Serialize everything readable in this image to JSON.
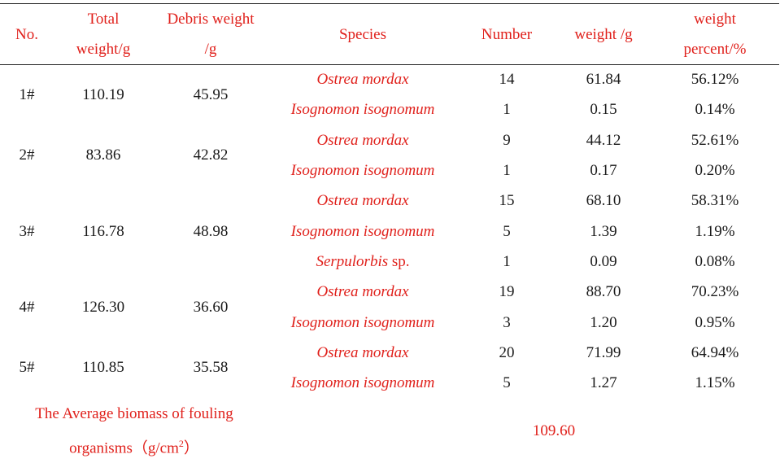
{
  "headers": {
    "no": "No.",
    "total_weight": [
      "Total",
      "weight/g"
    ],
    "debris_weight": [
      "Debris weight",
      "/g"
    ],
    "species": "Species",
    "number": "Number",
    "weight": "weight /g",
    "weight_percent": [
      "weight",
      "percent/%"
    ]
  },
  "colors": {
    "red": "#e0201b",
    "text": "#1a1a1a"
  },
  "groups": [
    {
      "no": "1#",
      "total": "110.19",
      "debris": "45.95",
      "rows": [
        {
          "species": "Ostrea mordax",
          "suffix": "",
          "number": "14",
          "weight": "61.84",
          "percent": "56.12%"
        },
        {
          "species": "Isognomon isognomum",
          "suffix": "",
          "number": "1",
          "weight": "0.15",
          "percent": "0.14%"
        }
      ]
    },
    {
      "no": "2#",
      "total": "83.86",
      "debris": "42.82",
      "rows": [
        {
          "species": "Ostrea mordax",
          "suffix": "",
          "number": "9",
          "weight": "44.12",
          "percent": "52.61%"
        },
        {
          "species": "Isognomon isognomum",
          "suffix": "",
          "number": "1",
          "weight": "0.17",
          "percent": "0.20%"
        }
      ]
    },
    {
      "no": "3#",
      "total": "116.78",
      "debris": "48.98",
      "rows": [
        {
          "species": "Ostrea mordax",
          "suffix": "",
          "number": "15",
          "weight": "68.10",
          "percent": "58.31%"
        },
        {
          "species": "Isognomon isognomum",
          "suffix": "",
          "number": "5",
          "weight": "1.39",
          "percent": "1.19%"
        },
        {
          "species": "Serpulorbis",
          "suffix": " sp.",
          "number": "1",
          "weight": "0.09",
          "percent": "0.08%"
        }
      ]
    },
    {
      "no": "4#",
      "total": "126.30",
      "debris": "36.60",
      "rows": [
        {
          "species": "Ostrea mordax",
          "suffix": "",
          "number": "19",
          "weight": "88.70",
          "percent": "70.23%"
        },
        {
          "species": "Isognomon isognomum",
          "suffix": "",
          "number": "3",
          "weight": "1.20",
          "percent": "0.95%"
        }
      ]
    },
    {
      "no": "5#",
      "total": "110.85",
      "debris": "35.58",
      "rows": [
        {
          "species": "Ostrea mordax",
          "suffix": "",
          "number": "20",
          "weight": "71.99",
          "percent": "64.94%"
        },
        {
          "species": "Isognomon isognomum",
          "suffix": "",
          "number": "5",
          "weight": "1.27",
          "percent": "1.15%"
        }
      ]
    }
  ],
  "footer": {
    "label_line1": "The Average biomass of fouling",
    "label_line2": "organisms（g/cm",
    "label_sup": "2",
    "label_close": "）",
    "value": "109.60"
  }
}
